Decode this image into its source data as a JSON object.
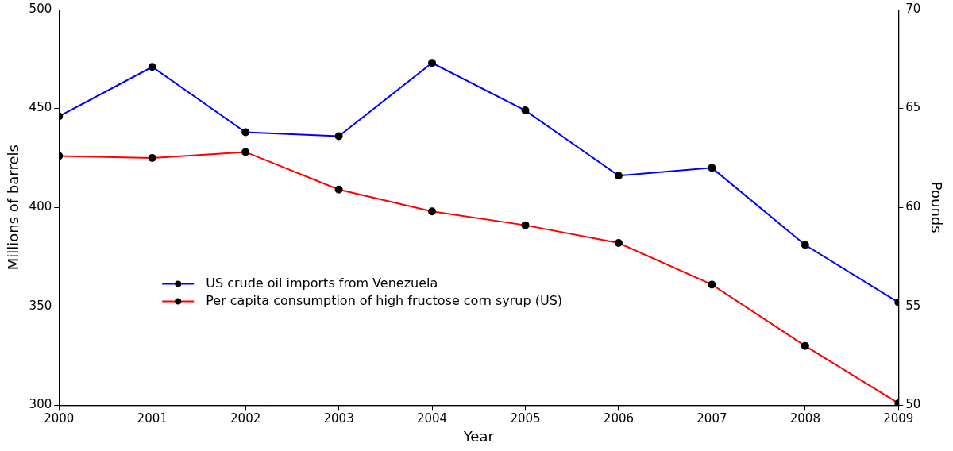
{
  "chart_data": {
    "type": "line",
    "x_label": "Year",
    "y_label": "Millions of barrels",
    "y2_label": "Pounds",
    "x": [
      2000,
      2001,
      2002,
      2003,
      2004,
      2005,
      2006,
      2007,
      2008,
      2009
    ],
    "xlim": [
      2000,
      2009
    ],
    "xticks": [
      2000,
      2001,
      2002,
      2003,
      2004,
      2005,
      2006,
      2007,
      2008,
      2009
    ],
    "ylim": [
      300,
      500
    ],
    "yticks": [
      300,
      350,
      400,
      450,
      500
    ],
    "y2lim": [
      50,
      70
    ],
    "y2ticks": [
      50,
      55,
      60,
      65,
      70
    ],
    "grid": false,
    "legend": "lower left",
    "series": [
      {
        "name": "US crude oil imports from Venezuela",
        "color": "#0000ff",
        "marker": "o",
        "values": [
          446,
          471,
          438,
          436,
          473,
          449,
          416,
          420,
          381,
          352
        ]
      },
      {
        "name": "Per capita consumption of high fructose corn syrup (US)",
        "color": "#ff0000",
        "marker": "o",
        "axis": "y2",
        "values": [
          62.6,
          62.5,
          62.8,
          60.9,
          59.8,
          59.1,
          58.2,
          56.1,
          53.0,
          50.1
        ]
      }
    ]
  }
}
